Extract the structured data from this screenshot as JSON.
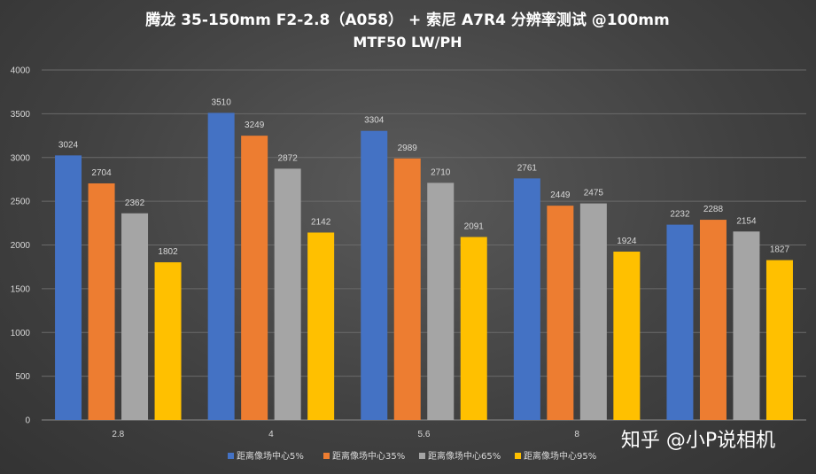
{
  "chart_data": {
    "type": "bar",
    "title": "腾龙 35-150mm F2-2.8（A058） + 索尼 A7R4 分辨率测试 @100mm",
    "subtitle": "MTF50 LW/PH",
    "categories": [
      "2.8",
      "4",
      "5.6",
      "8",
      ""
    ],
    "series": [
      {
        "name": "距离像场中心5%",
        "color": "#4472c4",
        "values": [
          3024,
          3510,
          3304,
          2761,
          2232
        ]
      },
      {
        "name": "距离像场中心35%",
        "color": "#ed7d31",
        "values": [
          2704,
          3249,
          2989,
          2449,
          2288
        ]
      },
      {
        "name": "距离像场中心65%",
        "color": "#a5a5a5",
        "values": [
          2362,
          2872,
          2710,
          2475,
          2154
        ]
      },
      {
        "name": "距离像场中心95%",
        "color": "#ffc000",
        "values": [
          1802,
          2142,
          2091,
          1924,
          1827
        ]
      }
    ],
    "y_ticks": [
      "0",
      "500",
      "1000",
      "1500",
      "2000",
      "2500",
      "3000",
      "3500",
      "4000"
    ],
    "ylim": [
      0,
      4000
    ],
    "grid": true,
    "legend_position": "bottom"
  },
  "watermark": "知乎 @小P说相机"
}
